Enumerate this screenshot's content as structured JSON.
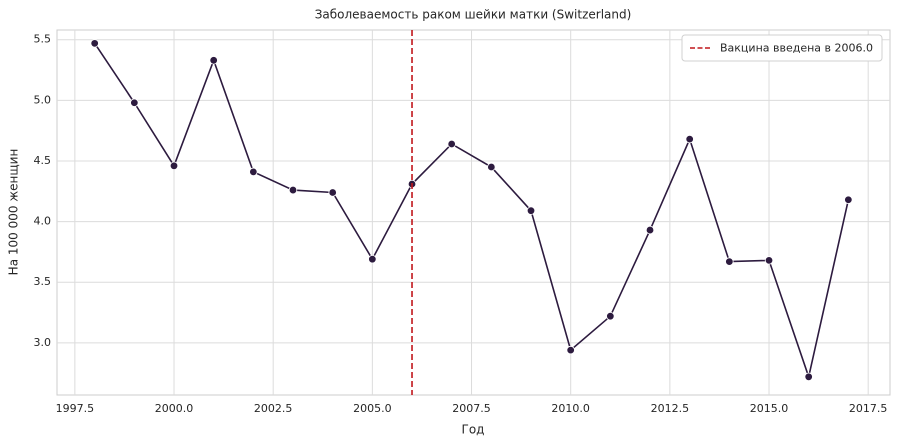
{
  "chart_data": {
    "type": "line",
    "title": "Заболеваемость раком шейки матки (Switzerland)",
    "x_label": "Год",
    "y_label": "На 100 000 женщин",
    "x": [
      1998,
      1999,
      2000,
      2001,
      2002,
      2003,
      2004,
      2005,
      2006,
      2007,
      2008,
      2009,
      2010,
      2011,
      2012,
      2013,
      2014,
      2015,
      2016,
      2017
    ],
    "series": [
      {
        "color": "#2d1b3f",
        "values": [
          5.47,
          4.98,
          4.46,
          5.33,
          4.41,
          4.26,
          4.24,
          3.69,
          4.31,
          4.64,
          4.45,
          4.09,
          2.94,
          3.22,
          3.93,
          4.68,
          3.67,
          3.68,
          2.72,
          4.18
        ]
      }
    ],
    "xlim": [
      1997.05,
      2018.05
    ],
    "ylim": [
      2.57,
      5.58
    ],
    "xticks": [
      1997.5,
      {
        "value": 2000,
        "label": "2000.0"
      },
      2002.5,
      {
        "value": 2005,
        "label": "2005.0"
      },
      2007.5,
      {
        "value": 2010,
        "label": "2010.0"
      },
      2012.5,
      {
        "value": 2015,
        "label": "2015.0"
      },
      2017.5
    ],
    "yticks": [
      {
        "value": 3,
        "label": "3.0"
      },
      3.5,
      {
        "value": 4,
        "label": "4.0"
      },
      4.5,
      {
        "value": 5,
        "label": "5.0"
      },
      5.5
    ],
    "grid": true,
    "vline": {
      "x": 2006,
      "color": "#c0171c",
      "label": "Вакцина введена в 2006.0"
    },
    "legend": "upper right"
  }
}
